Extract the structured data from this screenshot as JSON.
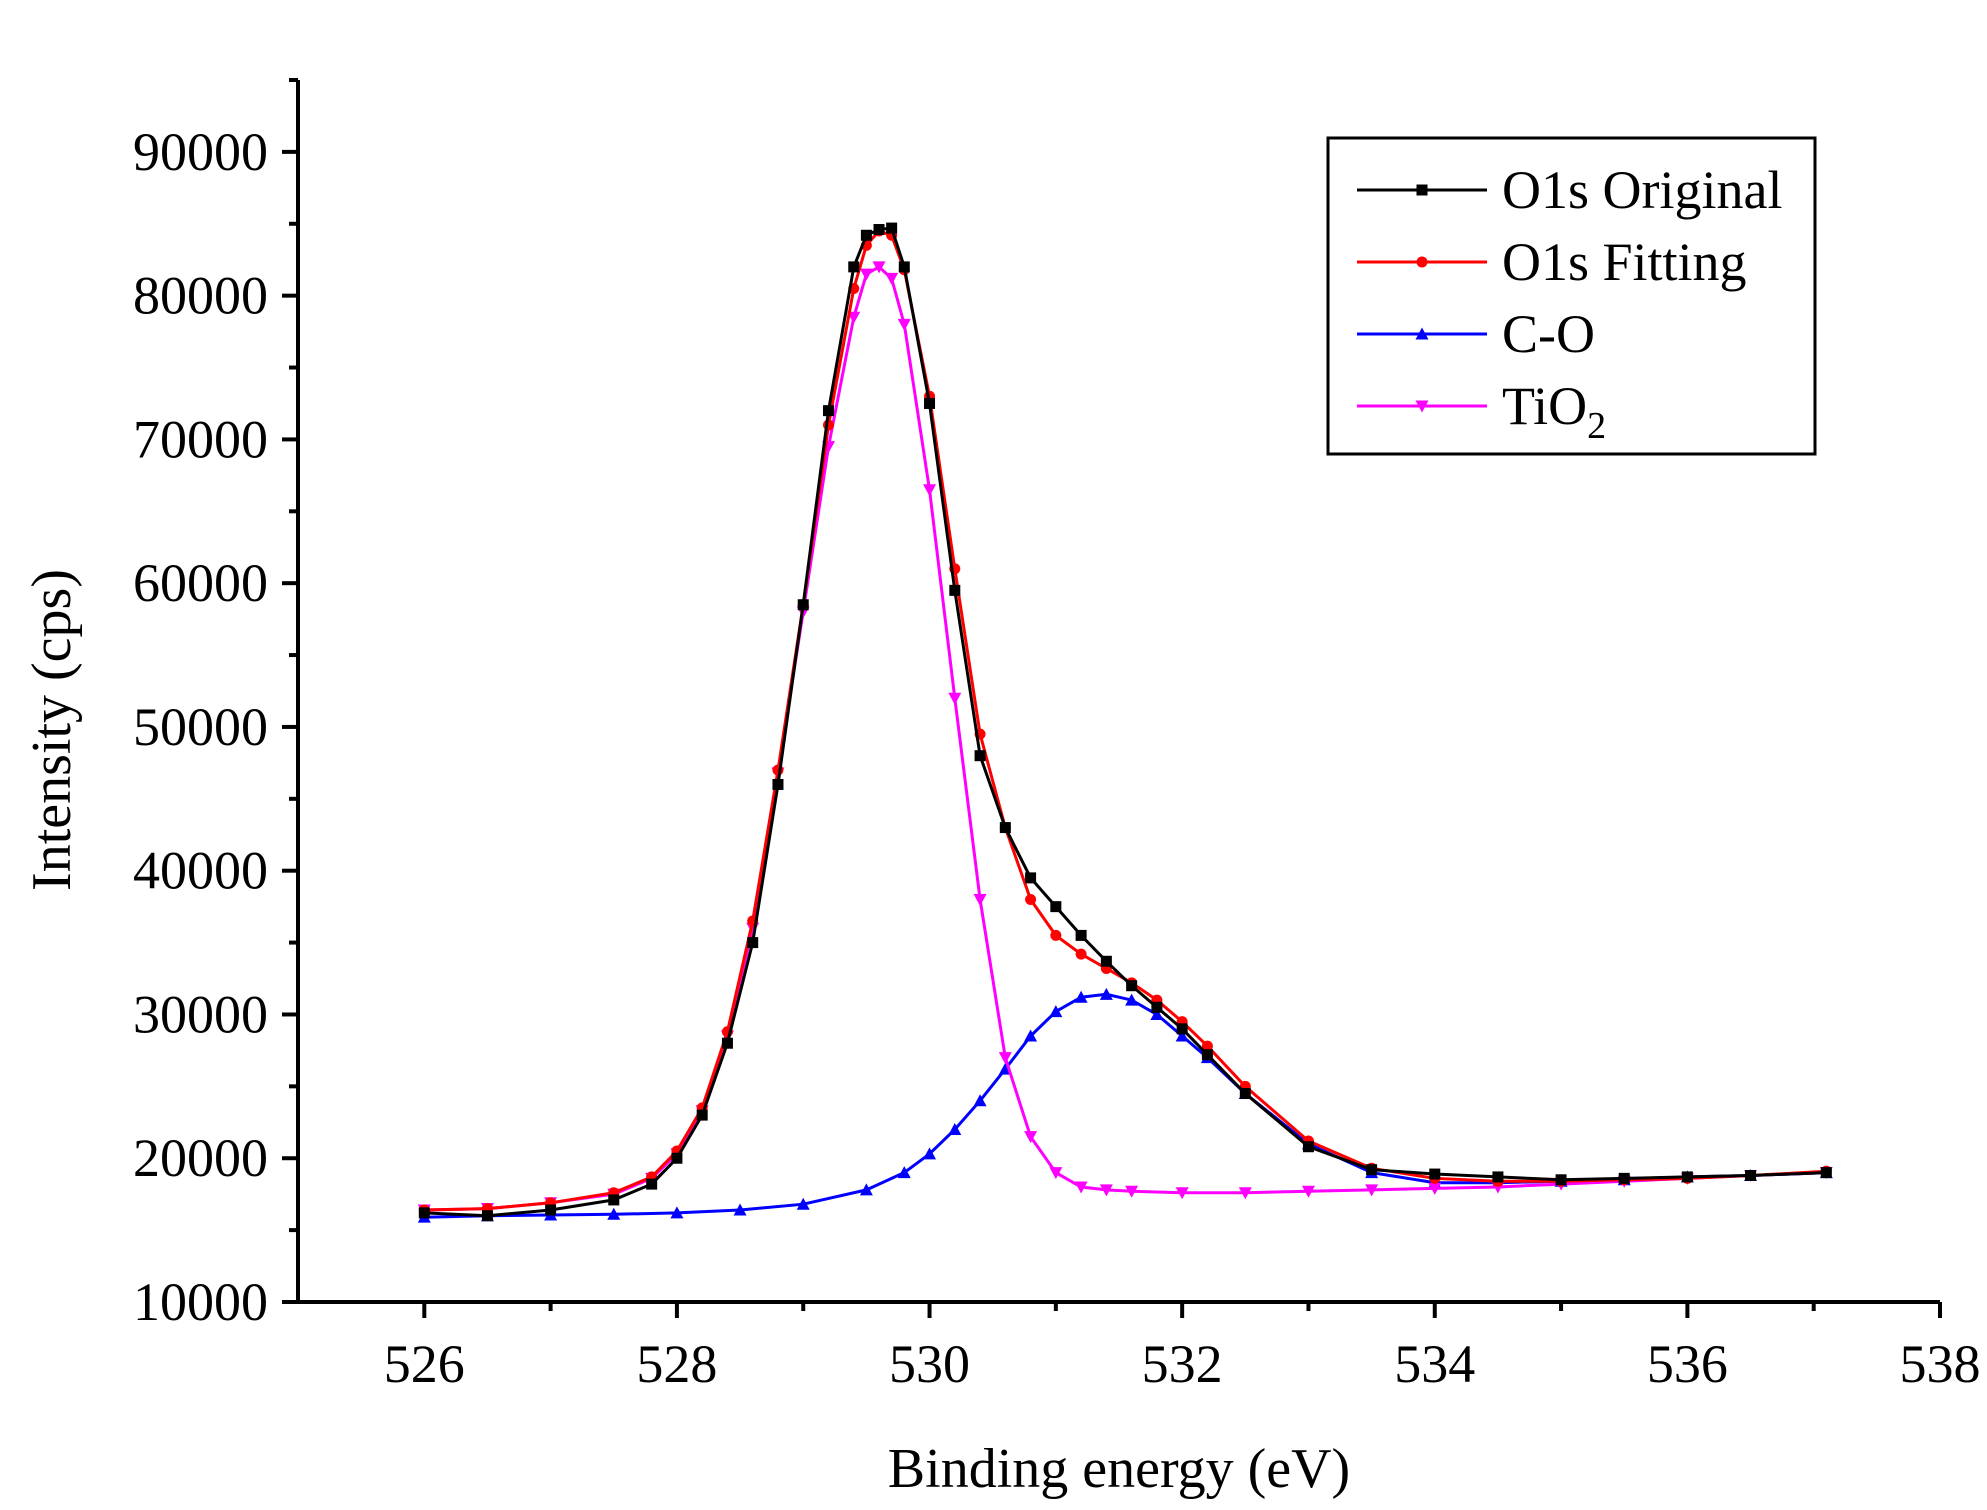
{
  "chart_data": {
    "type": "line",
    "xlabel": "Binding energy (eV)",
    "ylabel": "Intensity (cps)",
    "xlim": [
      525,
      538
    ],
    "ylim": [
      10000,
      95000
    ],
    "x_ticks": [
      "526",
      "528",
      "530",
      "532",
      "534",
      "536",
      "538"
    ],
    "y_ticks": [
      "10000",
      "20000",
      "30000",
      "40000",
      "50000",
      "60000",
      "70000",
      "80000",
      "90000"
    ],
    "legend_position": "top-right",
    "series": [
      {
        "name": "O1s Original",
        "legend_main": "O1s Original",
        "legend_sub": "",
        "color": "#000000",
        "marker": "square",
        "x": [
          526.0,
          526.5,
          527.0,
          527.5,
          527.8,
          528.0,
          528.2,
          528.4,
          528.6,
          528.8,
          529.0,
          529.2,
          529.4,
          529.5,
          529.6,
          529.7,
          529.8,
          530.0,
          530.2,
          530.4,
          530.6,
          530.8,
          531.0,
          531.2,
          531.4,
          531.6,
          531.8,
          532.0,
          532.2,
          532.5,
          533.0,
          533.5,
          534.0,
          534.5,
          535.0,
          535.5,
          536.0,
          536.5,
          537.1
        ],
        "values": [
          16200,
          16000,
          16400,
          17100,
          18200,
          20000,
          23000,
          28000,
          35000,
          46000,
          58500,
          72000,
          82000,
          84200,
          84600,
          84700,
          82000,
          72500,
          59500,
          48000,
          43000,
          39500,
          37500,
          35500,
          33700,
          32000,
          30500,
          29000,
          27200,
          24500,
          20800,
          19200,
          18900,
          18700,
          18500,
          18600,
          18700,
          18800,
          19000
        ]
      },
      {
        "name": "O1s Fitting",
        "legend_main": "O1s Fitting",
        "legend_sub": "",
        "color": "#ff0000",
        "marker": "circle",
        "x": [
          526.0,
          526.5,
          527.0,
          527.5,
          527.8,
          528.0,
          528.2,
          528.4,
          528.6,
          528.8,
          529.0,
          529.2,
          529.4,
          529.5,
          529.6,
          529.7,
          529.8,
          530.0,
          530.2,
          530.4,
          530.6,
          530.8,
          531.0,
          531.2,
          531.4,
          531.6,
          531.8,
          532.0,
          532.2,
          532.5,
          533.0,
          533.5,
          534.0,
          534.5,
          535.0,
          535.5,
          536.0,
          536.5,
          537.1
        ],
        "values": [
          16400,
          16500,
          16900,
          17600,
          18700,
          20500,
          23500,
          28800,
          36500,
          47000,
          58500,
          71000,
          80500,
          83500,
          84500,
          84200,
          81800,
          73000,
          61000,
          49500,
          43000,
          38000,
          35500,
          34200,
          33200,
          32200,
          31000,
          29500,
          27800,
          25000,
          21200,
          19300,
          18600,
          18400,
          18400,
          18500,
          18600,
          18800,
          19100
        ]
      },
      {
        "name": "C-O",
        "legend_main": "C-O",
        "legend_sub": "",
        "color": "#0000ff",
        "marker": "triangle-up",
        "x": [
          526.0,
          526.5,
          527.0,
          527.5,
          528.0,
          528.5,
          529.0,
          529.5,
          529.8,
          530.0,
          530.2,
          530.4,
          530.6,
          530.8,
          531.0,
          531.2,
          531.4,
          531.6,
          531.8,
          532.0,
          532.2,
          532.5,
          533.0,
          533.5,
          534.0,
          534.5,
          535.0,
          535.5,
          536.0,
          536.5,
          537.1
        ],
        "values": [
          15900,
          16000,
          16050,
          16100,
          16200,
          16400,
          16800,
          17800,
          19000,
          20300,
          22000,
          24000,
          26200,
          28500,
          30200,
          31200,
          31400,
          31000,
          30000,
          28500,
          27000,
          24500,
          21000,
          19000,
          18300,
          18300,
          18400,
          18500,
          18700,
          18800,
          19000
        ]
      },
      {
        "name": "TiO2",
        "legend_main": "TiO",
        "legend_sub": "2",
        "color": "#ff00ff",
        "marker": "triangle-down",
        "x": [
          526.0,
          526.5,
          527.0,
          527.5,
          527.8,
          528.0,
          528.2,
          528.4,
          528.6,
          528.8,
          529.0,
          529.2,
          529.4,
          529.5,
          529.6,
          529.7,
          529.8,
          530.0,
          530.2,
          530.4,
          530.6,
          530.8,
          531.0,
          531.2,
          531.4,
          531.6,
          532.0,
          532.5,
          533.0,
          533.5,
          534.0,
          534.5,
          535.0,
          535.5,
          536.0,
          536.5,
          537.1
        ],
        "values": [
          16400,
          16500,
          16900,
          17500,
          18600,
          20300,
          23300,
          28500,
          36000,
          46800,
          58000,
          69500,
          78500,
          81500,
          82000,
          81200,
          78000,
          66500,
          52000,
          38000,
          27000,
          21500,
          19000,
          18000,
          17800,
          17700,
          17600,
          17600,
          17700,
          17800,
          17900,
          18000,
          18200,
          18400,
          18600,
          18800,
          19000
        ]
      }
    ]
  }
}
